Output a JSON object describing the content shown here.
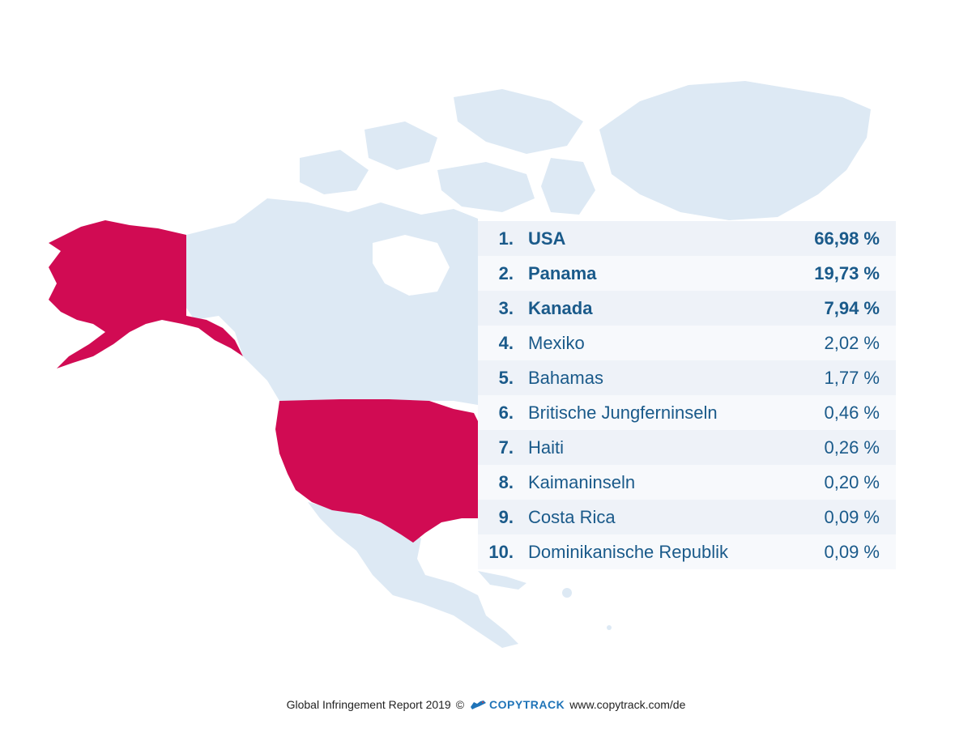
{
  "colors": {
    "land": "#dde9f4",
    "highlight": "#d10b53",
    "text": "#1a5a8a",
    "brand": "#1f74b8"
  },
  "highlighted_regions": [
    "USA"
  ],
  "ranking": [
    {
      "rank": "1.",
      "country": "USA",
      "percent": "66,98 %",
      "bold": true
    },
    {
      "rank": "2.",
      "country": "Panama",
      "percent": "19,73 %",
      "bold": true
    },
    {
      "rank": "3.",
      "country": "Kanada",
      "percent": "7,94 %",
      "bold": true
    },
    {
      "rank": "4.",
      "country": "Mexiko",
      "percent": "2,02 %",
      "bold": false
    },
    {
      "rank": "5.",
      "country": "Bahamas",
      "percent": "1,77 %",
      "bold": false
    },
    {
      "rank": "6.",
      "country": "Britische Jungferninseln",
      "percent": "0,46 %",
      "bold": false
    },
    {
      "rank": "7.",
      "country": "Haiti",
      "percent": "0,26 %",
      "bold": false
    },
    {
      "rank": "8.",
      "country": "Kaimaninseln",
      "percent": "0,20 %",
      "bold": false
    },
    {
      "rank": "9.",
      "country": "Costa Rica",
      "percent": "0,09 %",
      "bold": false
    },
    {
      "rank": "10.",
      "country": "Dominikanische Republik",
      "percent": "0,09 %",
      "bold": false
    }
  ],
  "footer": {
    "report": "Global Infringement Report 2019",
    "copyright": "©",
    "brand": "COPYTRACK",
    "url": "www.copytrack.com/de",
    "brand_icon": "dog-icon"
  }
}
